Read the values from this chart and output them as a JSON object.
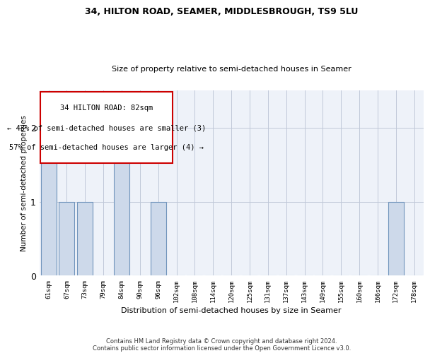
{
  "title1": "34, HILTON ROAD, SEAMER, MIDDLESBROUGH, TS9 5LU",
  "title2": "Size of property relative to semi-detached houses in Seamer",
  "xlabel": "Distribution of semi-detached houses by size in Seamer",
  "ylabel": "Number of semi-detached properties",
  "footer1": "Contains HM Land Registry data © Crown copyright and database right 2024.",
  "footer2": "Contains public sector information licensed under the Open Government Licence v3.0.",
  "annotation_line1": "34 HILTON ROAD: 82sqm",
  "annotation_line2": "← 43% of semi-detached houses are smaller (3)",
  "annotation_line3": "57% of semi-detached houses are larger (4) →",
  "bins": [
    "61sqm",
    "67sqm",
    "73sqm",
    "79sqm",
    "84sqm",
    "90sqm",
    "96sqm",
    "102sqm",
    "108sqm",
    "114sqm",
    "120sqm",
    "125sqm",
    "131sqm",
    "137sqm",
    "143sqm",
    "149sqm",
    "155sqm",
    "160sqm",
    "166sqm",
    "172sqm",
    "178sqm"
  ],
  "values": [
    2,
    1,
    1,
    0,
    2,
    0,
    1,
    0,
    0,
    0,
    0,
    0,
    0,
    0,
    0,
    0,
    0,
    0,
    0,
    1,
    0
  ],
  "bar_color": "#cdd9ea",
  "bar_edge_color": "#7094bc",
  "background_color": "#eef2f9",
  "annotation_box_color": "#cc0000",
  "ylim": [
    0,
    2.5
  ],
  "yticks": [
    0,
    1,
    2
  ]
}
